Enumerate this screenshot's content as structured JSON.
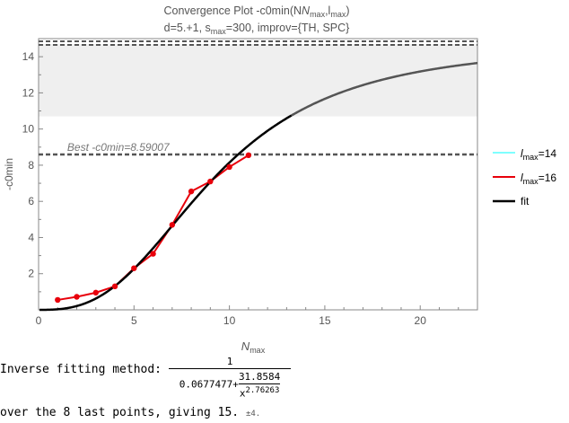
{
  "chart_data": {
    "type": "line",
    "title_line1": "Convergence Plot -c0min(N",
    "title_sub1": "max",
    "title_mid": ",l",
    "title_sub2": "max",
    "title_end": ")",
    "subtitle_pre": "d=5.+1, s",
    "subtitle_sub": "max",
    "subtitle_post": "=300, improv={TH, SPC}",
    "xlabel": "N",
    "xlabel_sub": "max",
    "ylabel": "-c0min",
    "xlim": [
      0,
      23
    ],
    "ylim": [
      0,
      15
    ],
    "x_ticks": [
      0,
      5,
      10,
      15,
      20
    ],
    "y_ticks": [
      2,
      4,
      6,
      8,
      10,
      12,
      14
    ],
    "band": {
      "y_low": 10.7,
      "y_high": 14.7,
      "color": "#efefef"
    },
    "upper_dashed_lines": [
      14.65,
      14.85
    ],
    "best_line": {
      "y": 8.59007,
      "label": "Best -c0min=8.59007"
    },
    "series": [
      {
        "name_pre": "l",
        "name_sub": "max",
        "name_post": "=14",
        "color": "#7fffff",
        "x": [],
        "y": []
      },
      {
        "name_pre": "l",
        "name_sub": "max",
        "name_post": "=16",
        "color": "#e8000b",
        "x": [
          1,
          2,
          3,
          4,
          5,
          6,
          7,
          8,
          9,
          10,
          11
        ],
        "y": [
          0.55,
          0.72,
          0.95,
          1.3,
          2.3,
          3.1,
          4.7,
          6.55,
          7.1,
          7.9,
          8.55
        ]
      }
    ],
    "fit": {
      "name": "fit",
      "color": "#000000",
      "a": 0.0677477,
      "b": 31.8584,
      "p": 2.76263,
      "solid_until": 13.3
    },
    "legend_position": "right"
  },
  "caption": {
    "method_label": "Inverse fitting method: ",
    "numerator": "1",
    "den_const": "0.0677477+",
    "den_num": "31.8584",
    "den_var": "x",
    "den_exp": "2.76263",
    "summary_text": "over the 8 last points, giving 15. ",
    "summary_error": "±4."
  },
  "colors": {
    "fit_tail": "#555555",
    "dashed": "#555555",
    "axis": "#888888"
  }
}
